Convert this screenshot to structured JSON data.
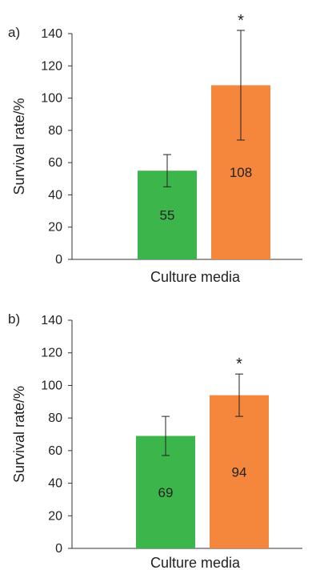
{
  "chart_data": [
    {
      "panel_label": "a)",
      "type": "bar",
      "xlabel": "Culture media",
      "ylabel": "Survival rate/%",
      "ylim": [
        0,
        140
      ],
      "yticks": [
        0,
        20,
        40,
        60,
        80,
        100,
        120,
        140
      ],
      "grid": false,
      "bars": [
        {
          "value": 55,
          "label": "55",
          "error_low": 45,
          "error_high": 65,
          "color": "#3cb54a",
          "annotation": ""
        },
        {
          "value": 108,
          "label": "108",
          "error_low": 74,
          "error_high": 142,
          "color": "#f4873c",
          "annotation": "*"
        }
      ]
    },
    {
      "panel_label": "b)",
      "type": "bar",
      "xlabel": "Culture media",
      "ylabel": "Survival rate/%",
      "ylim": [
        0,
        140
      ],
      "yticks": [
        0,
        20,
        40,
        60,
        80,
        100,
        120,
        140
      ],
      "grid": false,
      "bars": [
        {
          "value": 69,
          "label": "69",
          "error_low": 57,
          "error_high": 81,
          "color": "#3cb54a",
          "annotation": ""
        },
        {
          "value": 94,
          "label": "94",
          "error_low": 81,
          "error_high": 107,
          "color": "#f4873c",
          "annotation": "*"
        }
      ]
    }
  ]
}
